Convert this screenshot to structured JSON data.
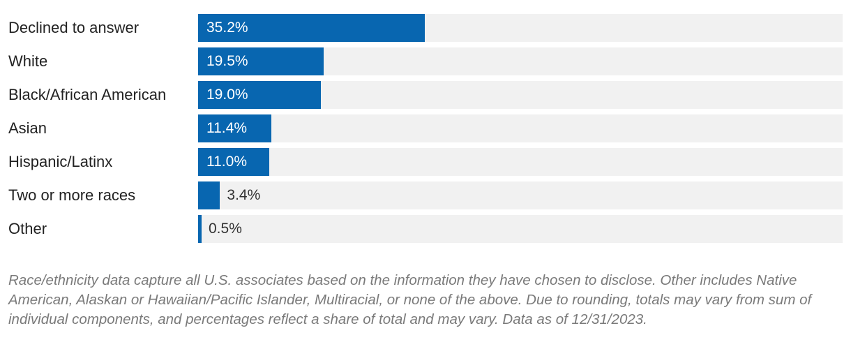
{
  "chart_data": {
    "type": "bar",
    "orientation": "horizontal",
    "categories": [
      "Declined to answer",
      "White",
      "Black/African American",
      "Asian",
      "Hispanic/Latinx",
      "Two or more races",
      "Other"
    ],
    "values": [
      35.2,
      19.5,
      19.0,
      11.4,
      11.0,
      3.4,
      0.5
    ],
    "value_labels": [
      "35.2%",
      "19.5%",
      "19.0%",
      "11.4%",
      "11.0%",
      "3.4%",
      "0.5%"
    ],
    "xlim": [
      0,
      100
    ],
    "grid": false,
    "title": "",
    "xlabel": "",
    "ylabel": ""
  },
  "footnote": "Race/ethnicity data capture all U.S. associates based on the information they have chosen to disclose. Other includes Native American, Alaskan or Hawaiian/Pacific Islander, Multiracial, or none of the above. Due to rounding, totals may vary from sum of individual components, and percentages reflect a share of total and may vary. Data as of 12/31/2023.",
  "colors": {
    "bar": "#0866b0",
    "track": "#f1f1f1",
    "label_inside": "#ffffff",
    "label_outside": "#333333",
    "footnote": "#7a7a7a"
  }
}
